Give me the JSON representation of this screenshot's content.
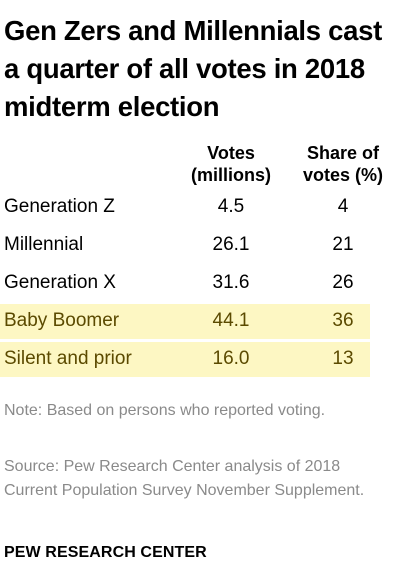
{
  "title": "Gen Zers and Millennials cast a quarter of all votes in 2018 midterm election",
  "headers": {
    "votes_line1": "Votes",
    "votes_line2": "(millions)",
    "share_line1": "Share of",
    "share_line2": "votes (%)"
  },
  "chart_data": {
    "type": "table",
    "title": "Gen Zers and Millennials cast a quarter of all votes in 2018 midterm election",
    "columns": [
      "Votes (millions)",
      "Share of votes (%)"
    ],
    "rows": [
      {
        "label": "Generation Z",
        "votes": "4.5",
        "share": "4",
        "highlight": false
      },
      {
        "label": "Millennial",
        "votes": "26.1",
        "share": "21",
        "highlight": false
      },
      {
        "label": "Generation X",
        "votes": "31.6",
        "share": "26",
        "highlight": false
      },
      {
        "label": "Baby Boomer",
        "votes": "44.1",
        "share": "36",
        "highlight": true
      },
      {
        "label": "Silent and prior",
        "votes": "16.0",
        "share": "13",
        "highlight": true
      }
    ]
  },
  "colors": {
    "highlight_bg": "#fdf7c3",
    "highlight_text": "#5b4a00",
    "note_text": "#8a8a8a"
  },
  "note": "Note: Based on persons who reported voting.",
  "source": "Source: Pew Research Center analysis of 2018 Current Population Survey November Supplement.",
  "brand": "PEW RESEARCH CENTER"
}
